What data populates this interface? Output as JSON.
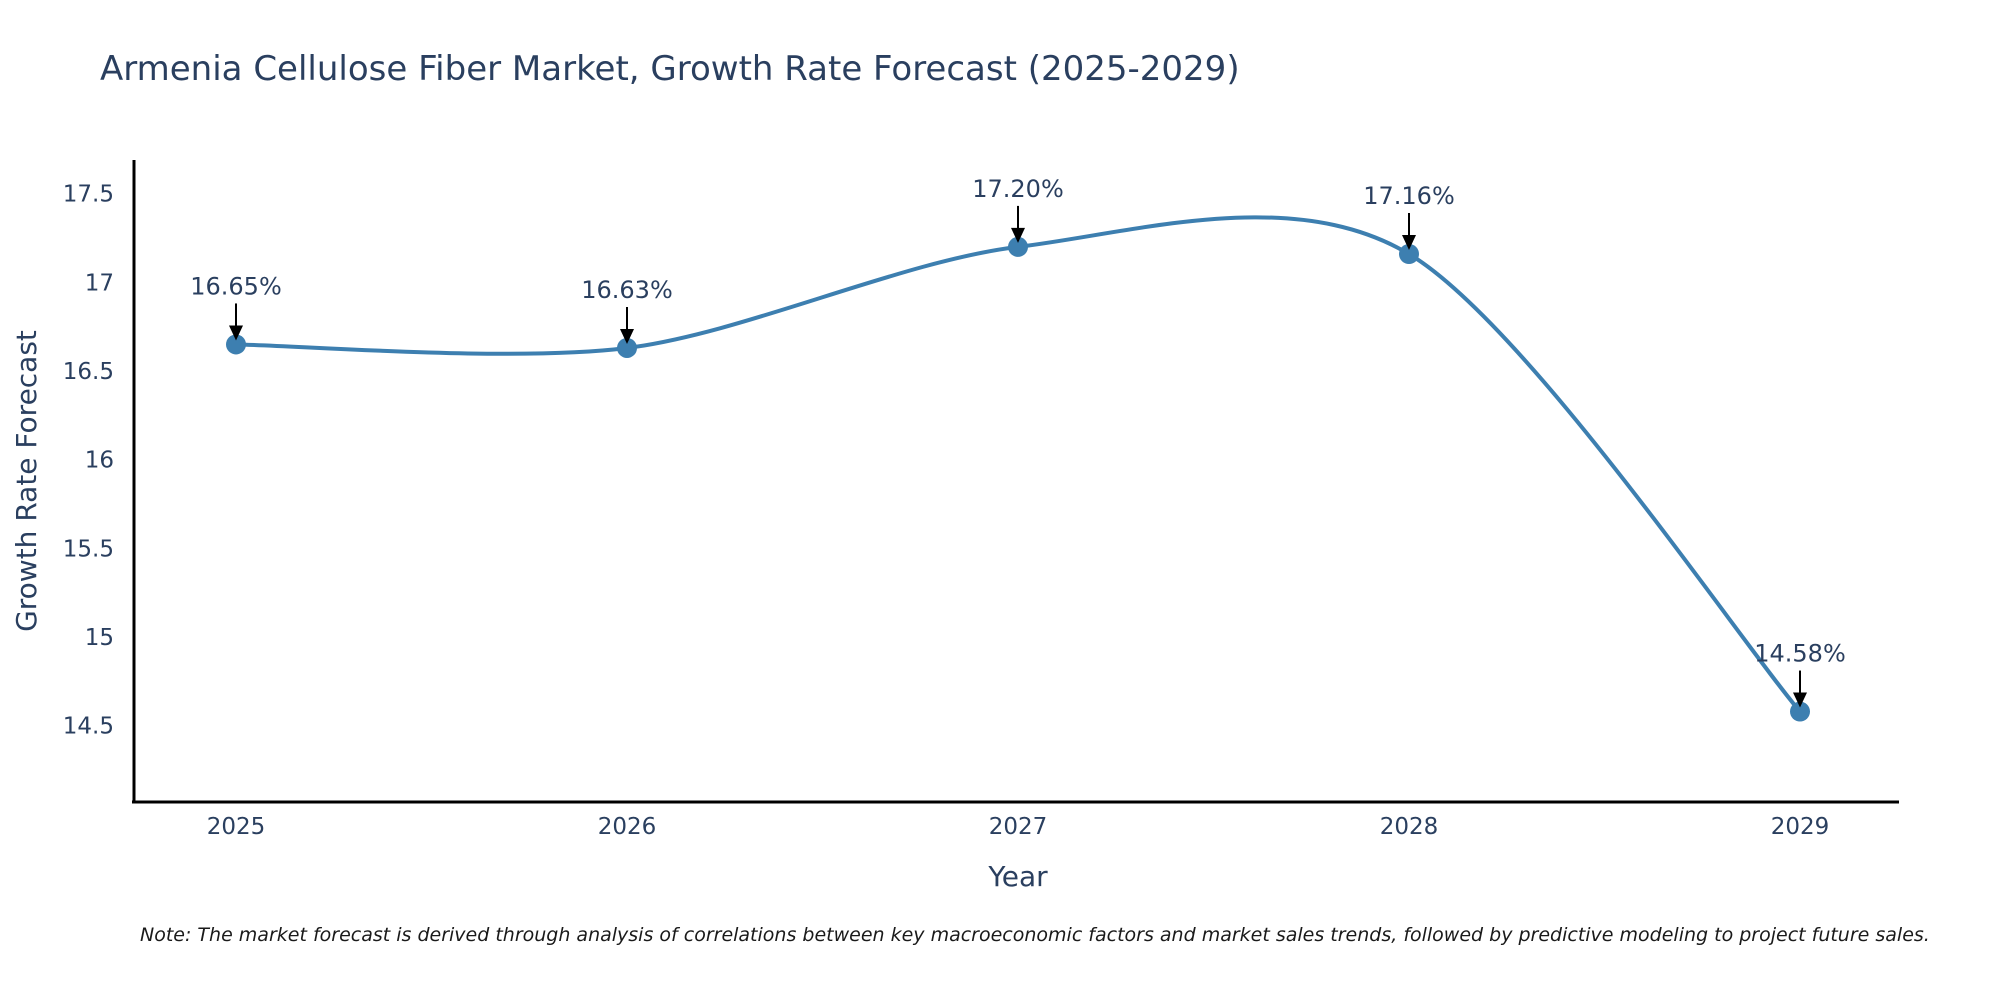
{
  "chart_data": {
    "type": "line",
    "title": "Armenia Cellulose Fiber Market, Growth Rate Forecast (2025-2029)",
    "xlabel": "Year",
    "ylabel": "Growth Rate Forecast",
    "categories": [
      "2025",
      "2026",
      "2027",
      "2028",
      "2029"
    ],
    "series": [
      {
        "name": "Growth Rate Forecast",
        "values": [
          16.65,
          16.63,
          17.2,
          17.16,
          14.58
        ],
        "labels": [
          "16.65%",
          "16.63%",
          "17.20%",
          "17.16%",
          "14.58%"
        ],
        "color": "#3d7fb0"
      }
    ],
    "yticks": [
      14.5,
      15,
      15.5,
      16,
      16.5,
      17,
      17.5
    ],
    "ytick_labels": [
      "14.5",
      "15",
      "15.5",
      "16",
      "16.5",
      "17",
      "17.5"
    ],
    "ylim": [
      14.07,
      17.69
    ],
    "grid": false,
    "legend": "none"
  },
  "note": "Note: The market forecast is derived through analysis of correlations between key macroeconomic factors and market sales trends, followed by predictive modeling to project future sales.",
  "colors": {
    "line": "#3d7fb0",
    "marker": "#3d7fb0",
    "axis": "#000000",
    "text": "#2a3f5f",
    "arrow": "#000000"
  }
}
